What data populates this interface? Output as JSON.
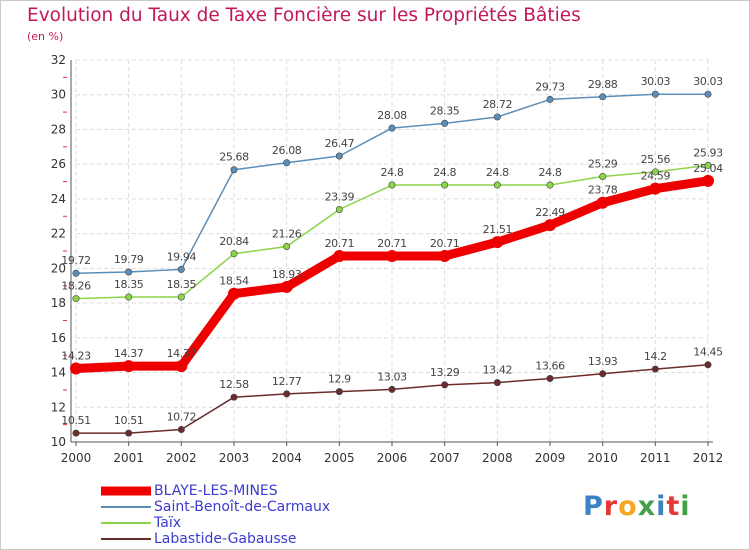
{
  "title": "Evolution du Taux de Taxe Foncière sur les Propriétés Bâties",
  "unit_label": "(en %)",
  "logo": {
    "letters": [
      "P",
      "r",
      "o",
      "x",
      "i",
      "t",
      "i"
    ],
    "colors": [
      "#3b82c4",
      "#e53935",
      "#f5a623",
      "#43a047",
      "#3b82c4",
      "#e53935",
      "#43a047"
    ]
  },
  "chart_data": {
    "type": "line",
    "title": "Evolution du Taux de Taxe Foncière sur les Propriétés Bâties",
    "ylabel": "(en %)",
    "xlabel": "",
    "x": [
      "2000",
      "2001",
      "2002",
      "2003",
      "2004",
      "2005",
      "2006",
      "2007",
      "2008",
      "2009",
      "2010",
      "2011",
      "2012"
    ],
    "ylim": [
      10,
      32
    ],
    "yticks": [
      10,
      12,
      14,
      16,
      18,
      20,
      22,
      24,
      26,
      28,
      30,
      32
    ],
    "grid": true,
    "legend_position": "bottom-left",
    "series": [
      {
        "name": "BLAYE-LES-MINES",
        "color": "#ee0000",
        "values": [
          14.23,
          14.37,
          14.37,
          18.54,
          18.93,
          20.71,
          20.71,
          20.71,
          21.51,
          22.49,
          23.78,
          24.59,
          25.04
        ],
        "labels": [
          "14.23",
          "14.37",
          "14.37",
          "18.54",
          "18.93",
          "20.71",
          "20.71",
          "20.71",
          "21.51",
          "22.49",
          "23.78",
          "24.59",
          "25.04"
        ]
      },
      {
        "name": "Saint-Benoît-de-Carmaux",
        "color": "#5b8fb9",
        "values": [
          19.72,
          19.79,
          19.94,
          25.68,
          26.08,
          26.47,
          28.08,
          28.35,
          28.72,
          29.73,
          29.88,
          30.03,
          30.03
        ],
        "labels": [
          "19.72",
          "19.79",
          "19.94",
          "25.68",
          "26.08",
          "26.47",
          "28.08",
          "28.35",
          "28.72",
          "29.73",
          "29.88",
          "30.03",
          "30.03"
        ]
      },
      {
        "name": "Taïx",
        "color": "#8cd44a",
        "values": [
          18.26,
          18.35,
          18.35,
          20.84,
          21.26,
          23.39,
          24.8,
          24.8,
          24.8,
          24.8,
          25.29,
          25.56,
          25.93
        ],
        "labels": [
          "18.26",
          "18.35",
          "18.35",
          "20.84",
          "21.26",
          "23.39",
          "24.8",
          "24.8",
          "24.8",
          "24.8",
          "25.29",
          "25.56",
          "25.93"
        ]
      },
      {
        "name": "Labastide-Gabausse",
        "color": "#6b2c2c",
        "values": [
          10.51,
          10.51,
          10.72,
          12.58,
          12.77,
          12.9,
          13.03,
          13.29,
          13.42,
          13.66,
          13.93,
          14.2,
          14.45
        ],
        "labels": [
          "10.51",
          "10.51",
          "10.72",
          "12.58",
          "12.77",
          "12.9",
          "13.03",
          "13.29",
          "13.42",
          "13.66",
          "13.93",
          "14.2",
          "14.45"
        ]
      }
    ]
  }
}
